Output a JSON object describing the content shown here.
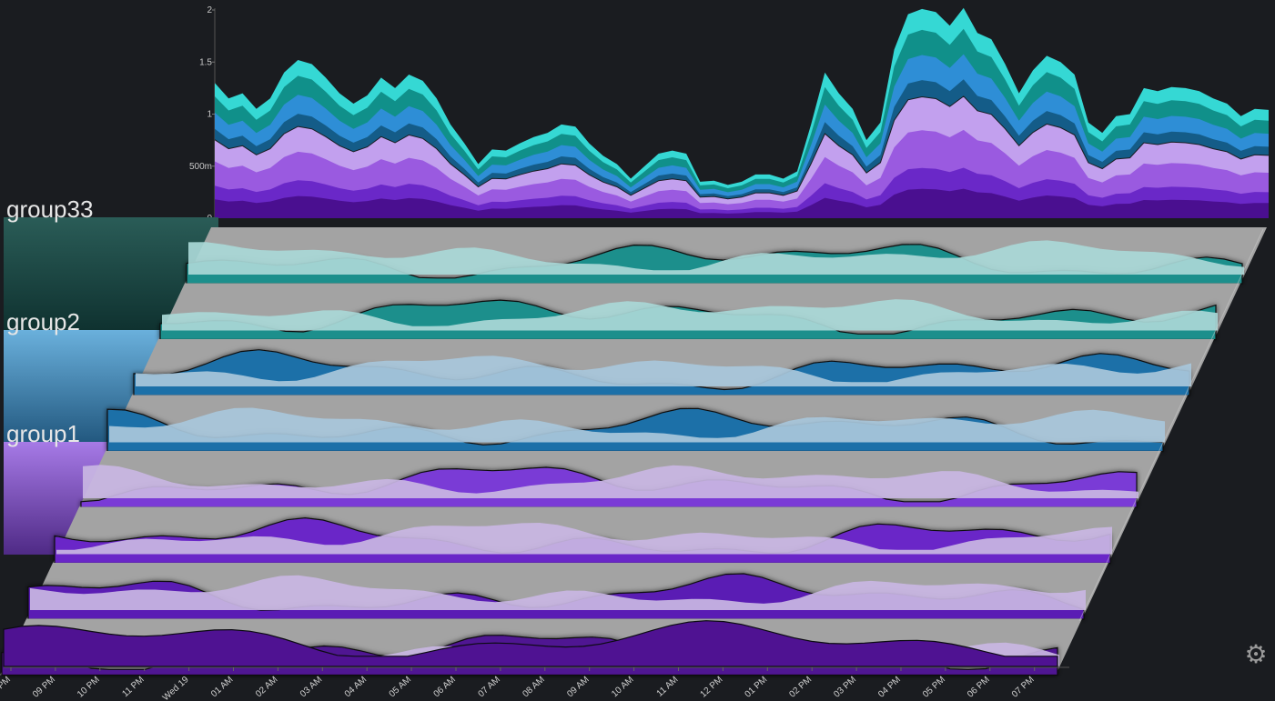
{
  "chart_data": {
    "type": "area",
    "top_chart": {
      "stacked": true,
      "y_ticks": [
        "0",
        "500m",
        "1",
        "1.5",
        "2"
      ],
      "ylim": [
        0,
        2
      ],
      "series_colors": [
        "#4a0f90",
        "#6a28c8",
        "#9a5ae0",
        "#c2a0ee",
        "#145c88",
        "#2e8ed6",
        "#10908a",
        "#35d8d4"
      ],
      "totals": [
        1.3,
        1.15,
        1.2,
        1.05,
        1.15,
        1.4,
        1.52,
        1.48,
        1.35,
        1.2,
        1.1,
        1.18,
        1.35,
        1.25,
        1.38,
        1.32,
        1.15,
        0.9,
        0.72,
        0.52,
        0.66,
        0.65,
        0.72,
        0.78,
        0.82,
        0.9,
        0.88,
        0.72,
        0.6,
        0.52,
        0.38,
        0.5,
        0.62,
        0.65,
        0.62,
        0.35,
        0.36,
        0.32,
        0.35,
        0.42,
        0.42,
        0.38,
        0.45,
        0.9,
        1.4,
        1.2,
        1.05,
        0.75,
        0.92,
        1.62,
        1.96,
        2.01,
        1.98,
        1.85,
        2.02,
        1.78,
        1.72,
        1.48,
        1.2,
        1.42,
        1.56,
        1.5,
        1.38,
        0.92,
        0.82,
        0.98,
        1.0,
        1.25,
        1.22,
        1.26,
        1.25,
        1.22,
        1.15,
        1.1,
        0.98,
        1.05,
        1.04
      ]
    },
    "groups": [
      "group33",
      "group2",
      "group1"
    ],
    "panel_colors": [
      "#1c8f8c",
      "#1e6fa8",
      "#7a3ad6"
    ],
    "ridge_fill_colors": [
      "#a9d7d6",
      "#a8c6da",
      "#c8b6e2"
    ],
    "bottom_area_color": "#4f1292",
    "x_ticks": [
      "PM",
      "09 PM",
      "10 PM",
      "11 PM",
      "Wed 19",
      "01 AM",
      "02 AM",
      "03 AM",
      "04 AM",
      "05 AM",
      "06 AM",
      "07 AM",
      "08 AM",
      "09 AM",
      "10 AM",
      "11 AM",
      "12 PM",
      "01 PM",
      "02 PM",
      "03 PM",
      "04 PM",
      "05 PM",
      "06 PM",
      "07 PM"
    ]
  }
}
